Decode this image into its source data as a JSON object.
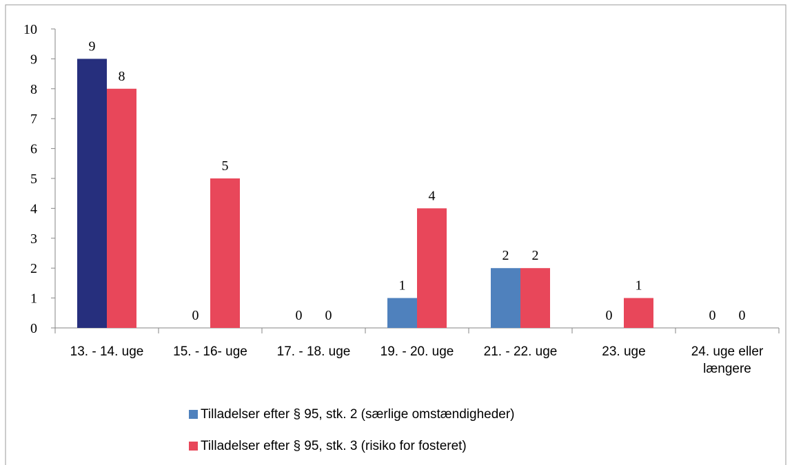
{
  "chart_data": {
    "type": "bar",
    "categories": [
      "13. - 14. uge",
      "15. - 16- uge",
      "17. - 18. uge",
      "19. - 20. uge",
      "21. - 22. uge",
      "23. uge",
      "24. uge eller længere"
    ],
    "series": [
      {
        "name": "Tilladelser efter § 95, stk. 2 (særlige omstændigheder)",
        "color": "#4f81bd",
        "point_colors": [
          "#262f7d",
          "#4f81bd",
          "#4f81bd",
          "#4f81bd",
          "#4f81bd",
          "#4f81bd",
          "#4f81bd"
        ],
        "values": [
          9,
          0,
          0,
          1,
          2,
          0,
          0
        ]
      },
      {
        "name": "Tilladelser efter § 95, stk. 3 (risiko for fosteret)",
        "color": "#e8475a",
        "values": [
          8,
          5,
          0,
          4,
          2,
          1,
          0
        ]
      }
    ],
    "ylim": [
      0,
      10
    ],
    "yticks": [
      0,
      1,
      2,
      3,
      4,
      5,
      6,
      7,
      8,
      9,
      10
    ],
    "grid": false,
    "legend": "bottom"
  }
}
